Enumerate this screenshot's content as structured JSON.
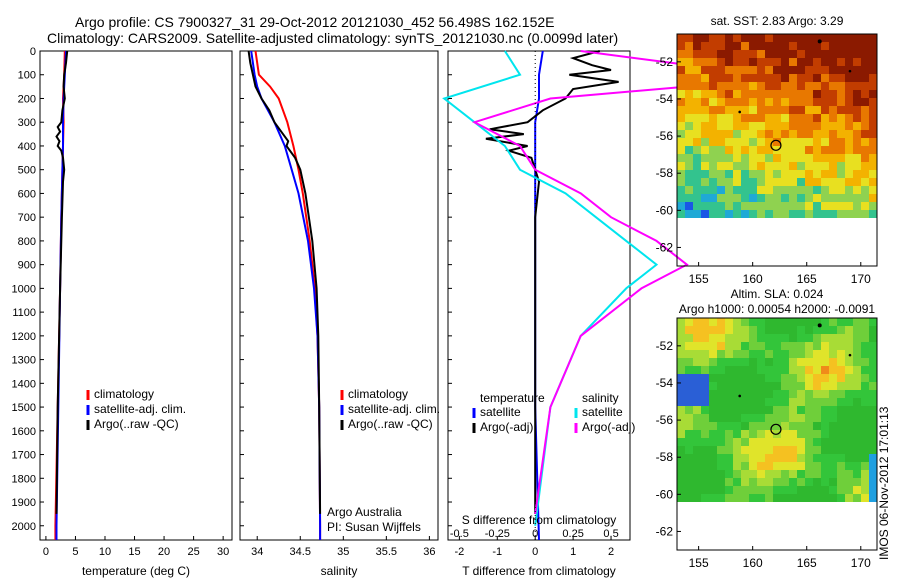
{
  "title": {
    "line1": "Argo profile: CS 7900327_31 29-Oct-2012 20121030_452 56.498S 162.152E",
    "line2": "Climatology: CARS2009. Satellite-adjusted climatology: synTS_20121030.nc (0.0099d later)"
  },
  "credit": "Argo Australia",
  "pi": "PI: Susan Wijffels",
  "stamp": "IMOS 06-Nov-2012 17:01:13",
  "colors": {
    "climatology": "#ff0000",
    "satellite_adj": "#0000ff",
    "argo": "#000000",
    "salinity_sat": "#00e5ee",
    "salinity_argo": "#ff00ff"
  },
  "chart_data": [
    {
      "type": "line",
      "id": "temperature",
      "xlabel": "temperature (deg C)",
      "xlim": [
        -1,
        31.5
      ],
      "ylim": [
        2060,
        0
      ],
      "xticks": [
        "0",
        "5",
        "10",
        "15",
        "20",
        "25",
        "30"
      ],
      "yticks": [
        "0",
        "100",
        "200",
        "300",
        "400",
        "500",
        "600",
        "700",
        "800",
        "900",
        "1000",
        "1100",
        "1200",
        "1300",
        "1400",
        "1500",
        "1600",
        "1700",
        "1800",
        "1900",
        "2000"
      ],
      "legend": [
        "climatology",
        "satellite-adj. clim.",
        "Argo(..raw -QC)"
      ],
      "series": [
        {
          "name": "climatology",
          "color": "#ff0000",
          "depth": [
            0,
            100,
            200,
            300,
            400,
            500,
            700,
            1000,
            1500,
            2000,
            2060
          ],
          "values": [
            3.2,
            3.1,
            2.9,
            3.0,
            2.9,
            2.8,
            2.6,
            2.4,
            2.0,
            1.6,
            1.6
          ]
        },
        {
          "name": "satellite-adj. clim.",
          "color": "#0000ff",
          "depth": [
            0,
            100,
            200,
            300,
            400,
            500,
            700,
            1000,
            1500,
            2000,
            2060
          ],
          "values": [
            3.4,
            3.2,
            3.0,
            2.9,
            2.9,
            2.8,
            2.6,
            2.4,
            2.1,
            1.8,
            1.8
          ]
        },
        {
          "name": "Argo(..raw -QC)",
          "color": "#000000",
          "depth": [
            0,
            50,
            100,
            150,
            200,
            250,
            300,
            320,
            340,
            360,
            380,
            400,
            420,
            450,
            500,
            550,
            700,
            1000,
            1500,
            1950
          ],
          "values": [
            3.6,
            3.4,
            3.1,
            3.0,
            3.2,
            2.8,
            2.6,
            2.0,
            2.4,
            1.8,
            2.3,
            2.0,
            2.6,
            2.9,
            3.1,
            2.9,
            2.7,
            2.4,
            2.0,
            1.8
          ]
        }
      ]
    },
    {
      "type": "line",
      "id": "salinity",
      "xlabel": "salinity",
      "xlim": [
        33.8,
        36.1
      ],
      "ylim": [
        2060,
        0
      ],
      "xticks": [
        "34",
        "34.5",
        "35",
        "35.5",
        "36"
      ],
      "legend": [
        "climatology",
        "satellite-adj. clim.",
        "Argo(..raw -QC)"
      ],
      "series": [
        {
          "name": "climatology",
          "color": "#ff0000",
          "depth": [
            0,
            100,
            150,
            200,
            300,
            400,
            500,
            600,
            800,
            1000,
            1200,
            1500,
            2000,
            2060
          ],
          "values": [
            33.98,
            34.02,
            34.15,
            34.25,
            34.35,
            34.42,
            34.48,
            34.53,
            34.61,
            34.67,
            34.7,
            34.72,
            34.73,
            34.73
          ]
        },
        {
          "name": "satellite-adj. clim.",
          "color": "#0000ff",
          "depth": [
            0,
            100,
            150,
            200,
            300,
            400,
            500,
            600,
            800,
            1000,
            1200,
            1500,
            2000,
            2060
          ],
          "values": [
            33.93,
            33.97,
            34.0,
            34.05,
            34.2,
            34.32,
            34.4,
            34.48,
            34.59,
            34.66,
            34.7,
            34.72,
            34.73,
            34.73
          ]
        },
        {
          "name": "Argo(..raw -QC)",
          "color": "#000000",
          "depth": [
            0,
            50,
            100,
            150,
            200,
            250,
            300,
            350,
            380,
            400,
            450,
            500,
            600,
            800,
            1000,
            1200,
            1500,
            1950
          ],
          "values": [
            33.9,
            33.92,
            33.95,
            33.98,
            34.05,
            34.14,
            34.2,
            34.3,
            34.36,
            34.34,
            34.44,
            34.5,
            34.56,
            34.64,
            34.69,
            34.71,
            34.72,
            34.73
          ]
        }
      ]
    },
    {
      "type": "line",
      "id": "difference",
      "xlabel": "T difference from climatology",
      "xlabel2": "S difference from climatology",
      "xlim": [
        -2.3,
        2.5
      ],
      "ylim": [
        2060,
        0
      ],
      "xticks_T": [
        "-2",
        "-1",
        "0",
        "1",
        "2"
      ],
      "xticks_S": [
        "-0.5",
        "-0.25",
        "0",
        "0.25",
        "0.5"
      ],
      "legend_temperature": {
        "heading": "temperature",
        "items": [
          "satellite",
          "Argo(-adj)"
        ]
      },
      "legend_salinity": {
        "heading": "salinity",
        "items": [
          "satellite",
          "Argo(-adj)"
        ]
      },
      "series": [
        {
          "name": "temperature satellite",
          "color": "#0000ff",
          "depth": [
            0,
            100,
            200,
            300,
            500,
            700,
            1000,
            1500,
            2060
          ],
          "values": [
            0.2,
            0.1,
            0.1,
            0.0,
            0.0,
            0.0,
            0.0,
            0.0,
            0.1
          ]
        },
        {
          "name": "temperature Argo(-adj)",
          "color": "#000000",
          "depth": [
            0,
            30,
            60,
            80,
            100,
            130,
            160,
            200,
            250,
            300,
            330,
            350,
            370,
            400,
            420,
            450,
            500,
            550,
            700,
            1000,
            1500,
            1950
          ],
          "values": [
            1.7,
            1.0,
            1.5,
            2.0,
            0.9,
            2.2,
            1.0,
            0.8,
            0.2,
            -0.2,
            -1.2,
            -0.3,
            -1.3,
            -0.2,
            -0.7,
            -0.1,
            0.0,
            0.1,
            0.0,
            0.0,
            0.0,
            0.0
          ]
        },
        {
          "name": "salinity satellite",
          "color": "#00e5ee",
          "depth": [
            0,
            100,
            200,
            300,
            400,
            500,
            600,
            700,
            800,
            900,
            1000,
            1200,
            1500,
            2000
          ],
          "values": [
            -0.2,
            -0.1,
            -0.6,
            -0.4,
            -0.2,
            -0.1,
            0.2,
            0.4,
            0.6,
            0.8,
            0.6,
            0.3,
            0.1,
            0.0
          ]
        },
        {
          "name": "salinity Argo(-adj)",
          "color": "#ff00ff",
          "depth": [
            0,
            50,
            100,
            150,
            200,
            300,
            400,
            500,
            600,
            700,
            800,
            900,
            1000,
            1200,
            1500,
            1950
          ],
          "values": [
            0.3,
            0.9,
            1.5,
            1.0,
            0.1,
            -0.4,
            -0.1,
            0.0,
            0.3,
            0.5,
            0.8,
            1.0,
            0.7,
            0.3,
            0.1,
            0.0
          ]
        }
      ]
    },
    {
      "type": "heatmap",
      "id": "sst-map",
      "title": "sat. SST: 2.83 Argo: 3.29",
      "xlim": [
        153,
        171.5
      ],
      "ylim": [
        -63,
        -50.5
      ],
      "xticks": [
        "155",
        "160",
        "165",
        "170"
      ],
      "yticks": [
        "-52",
        "-54",
        "-56",
        "-58",
        "-60",
        "-62"
      ],
      "profile_location": {
        "lon": 162.152,
        "lat": -56.498
      }
    },
    {
      "type": "heatmap",
      "id": "sla-map",
      "title": "Altim. SLA: 0.024",
      "subtitle": "Argo h1000: 0.00054 h2000: -0.0091",
      "xlim": [
        153,
        171.5
      ],
      "ylim": [
        -63,
        -50.5
      ],
      "xticks": [
        "155",
        "160",
        "165",
        "170"
      ],
      "yticks": [
        "-52",
        "-54",
        "-56",
        "-58",
        "-60",
        "-62"
      ],
      "profile_location": {
        "lon": 162.152,
        "lat": -56.498
      }
    }
  ]
}
